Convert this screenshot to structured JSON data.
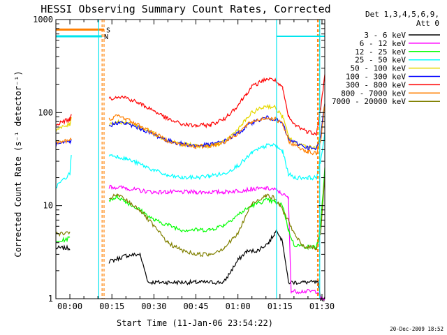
{
  "chart_data": {
    "type": "line",
    "title": "HESSI Observing Summary Count Rates, Corrected",
    "xlabel": "Start Time (11-Jan-06 23:54:22)",
    "ylabel": "Corrected Count Rate (s⁻¹ detector⁻¹)",
    "xlim": [
      -5,
      91
    ],
    "ylim": [
      1,
      1000
    ],
    "yscale": "log",
    "x_ticks": [
      {
        "v": 0,
        "label": "00:00"
      },
      {
        "v": 15,
        "label": "00:15"
      },
      {
        "v": 30,
        "label": "00:30"
      },
      {
        "v": 45,
        "label": "00:45"
      },
      {
        "v": 60,
        "label": "01:00"
      },
      {
        "v": 75,
        "label": "01:15"
      },
      {
        "v": 90,
        "label": "01:30"
      }
    ],
    "y_ticks": [
      {
        "v": 1,
        "label": "1"
      },
      {
        "v": 10,
        "label": "10"
      },
      {
        "v": 100,
        "label": "100"
      },
      {
        "v": 1000,
        "label": "1000"
      }
    ],
    "legend": {
      "header": [
        "Det 1,3,4,5,6,9,",
        "Att 0"
      ],
      "placement": "right"
    },
    "flags": [
      {
        "label": "S",
        "color": "#ff7f00",
        "x": [
          -5,
          12.2
        ],
        "y": 780
      },
      {
        "label": "N",
        "color": "#00e5ee",
        "x": [
          -5,
          11.5
        ],
        "y": 660
      }
    ],
    "footer": "20-Dec-2009 18:52",
    "series": [
      {
        "name": "3 - 6 keV",
        "color": "#000000",
        "x": [
          -5,
          0,
          13,
          14,
          20,
          25,
          28,
          35,
          45,
          55,
          60,
          63,
          67,
          71,
          73,
          74,
          76,
          78,
          88.5,
          89.5,
          91
        ],
        "y": [
          3.5,
          3.5,
          null,
          2.5,
          2.9,
          3.0,
          1.5,
          1.5,
          1.5,
          1.5,
          2.6,
          3.2,
          3.3,
          4.0,
          5.0,
          5.5,
          4.0,
          1.5,
          1.5,
          1.0,
          1.0
        ]
      },
      {
        "name": "6 - 12 keV",
        "color": "#ff00ff",
        "x": [
          13,
          14,
          20,
          25,
          30,
          35,
          45,
          55,
          60,
          65,
          70,
          73,
          75,
          78,
          79,
          88.5,
          89.5,
          91
        ],
        "y": [
          null,
          16,
          15.5,
          14.5,
          14.0,
          14.0,
          14.0,
          14.0,
          14.5,
          15.0,
          15.3,
          15.0,
          14.0,
          12.0,
          1.2,
          1.2,
          1.0,
          1.0
        ]
      },
      {
        "name": "12 - 25 keV",
        "color": "#00ff00",
        "x": [
          -5,
          0,
          13,
          14,
          17,
          20,
          25,
          30,
          40,
          50,
          55,
          60,
          65,
          70,
          73,
          76,
          78,
          80,
          85,
          88,
          89.5,
          91
        ],
        "y": [
          4,
          4.5,
          null,
          11.5,
          12.5,
          11.0,
          9.0,
          7.0,
          5.5,
          5.5,
          6.2,
          8.0,
          10.0,
          11.5,
          11.0,
          10.0,
          5.5,
          3.8,
          3.6,
          3.6,
          6,
          25
        ]
      },
      {
        "name": "25 - 50 keV",
        "color": "#00ffff",
        "x": [
          -5,
          0,
          0.5,
          13,
          14,
          17,
          20,
          25,
          30,
          35,
          40,
          45,
          50,
          55,
          60,
          63,
          65,
          70,
          73,
          76,
          78,
          80,
          85,
          88,
          89.5,
          91
        ],
        "y": [
          16,
          22,
          35,
          null,
          35,
          34,
          32,
          28,
          24,
          21,
          20,
          20,
          21,
          22,
          27,
          32,
          37,
          44,
          45,
          38,
          22,
          20,
          20,
          20,
          30,
          60
        ]
      },
      {
        "name": "50 - 100 keV",
        "color": "#e6d800",
        "x": [
          -5,
          0,
          0.5,
          13,
          14,
          17,
          20,
          25,
          30,
          35,
          40,
          45,
          50,
          55,
          60,
          63,
          65,
          70,
          73,
          76,
          78,
          80,
          85,
          88,
          89.5,
          91
        ],
        "y": [
          65,
          75,
          90,
          null,
          75,
          80,
          78,
          70,
          60,
          50,
          46,
          44,
          44,
          48,
          66,
          85,
          100,
          118,
          115,
          90,
          56,
          48,
          43,
          42,
          55,
          130
        ]
      },
      {
        "name": "100 - 300 keV",
        "color": "#0000ff",
        "x": [
          -5,
          0,
          0.5,
          13,
          14,
          17,
          20,
          25,
          30,
          35,
          40,
          45,
          50,
          55,
          60,
          63,
          65,
          70,
          73,
          76,
          78,
          80,
          85,
          88,
          89.5,
          91
        ],
        "y": [
          45,
          48,
          50,
          null,
          72,
          78,
          76,
          68,
          58,
          50,
          46,
          44,
          45,
          49,
          60,
          70,
          78,
          88,
          86,
          76,
          52,
          48,
          42,
          40,
          55,
          130
        ]
      },
      {
        "name": "300 - 800 keV",
        "color": "#ff0000",
        "x": [
          -5,
          0,
          0.5,
          13,
          14,
          17,
          20,
          25,
          30,
          35,
          40,
          45,
          50,
          55,
          60,
          63,
          65,
          70,
          73,
          76,
          78,
          80,
          85,
          88,
          89.5,
          91
        ],
        "y": [
          75,
          85,
          100,
          null,
          140,
          150,
          145,
          125,
          105,
          85,
          75,
          72,
          74,
          85,
          120,
          160,
          190,
          230,
          225,
          180,
          90,
          75,
          62,
          60,
          110,
          250
        ]
      },
      {
        "name": "800 - 7000 keV",
        "color": "#ff7f00",
        "x": [
          -5,
          0,
          0.5,
          13,
          14,
          17,
          20,
          25,
          30,
          35,
          40,
          45,
          50,
          55,
          60,
          63,
          65,
          70,
          73,
          76,
          78,
          80,
          85,
          88,
          89.5,
          91
        ],
        "y": [
          48,
          50,
          52,
          null,
          85,
          92,
          86,
          72,
          60,
          50,
          45,
          43,
          44,
          48,
          60,
          72,
          80,
          88,
          86,
          75,
          50,
          45,
          38,
          36,
          50,
          120
        ]
      },
      {
        "name": "7000 - 20000 keV",
        "color": "#808000",
        "x": [
          -5,
          0,
          13,
          14,
          17,
          20,
          25,
          30,
          35,
          40,
          45,
          50,
          55,
          60,
          63,
          65,
          70,
          73,
          75,
          78,
          80,
          83,
          85,
          88,
          89.5,
          91
        ],
        "y": [
          5.0,
          5.0,
          null,
          12,
          13,
          11.5,
          9.0,
          6.0,
          4.0,
          3.3,
          3.0,
          3.0,
          3.5,
          5.0,
          8.0,
          10.5,
          13.0,
          12.0,
          10.0,
          7.0,
          5.0,
          3.7,
          3.6,
          3.5,
          5,
          20
        ]
      }
    ]
  }
}
